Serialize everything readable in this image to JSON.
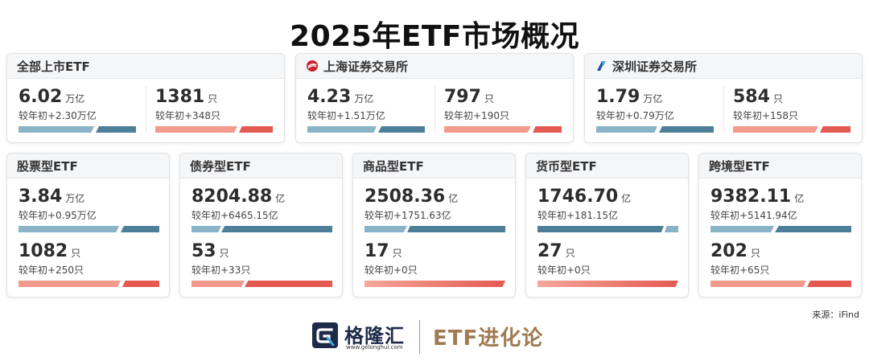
{
  "title": "2025年ETF市场概况",
  "colors": {
    "blue_bar": "#5a8ca8",
    "red_bar": "#e8635a",
    "card_head_bg": "#f5f6f8"
  },
  "top_cards": [
    {
      "name": "全部上市ETF",
      "icon": "",
      "left": {
        "value": "6.02",
        "unit": "万亿",
        "change": "较年初+2.30万亿"
      },
      "right": {
        "value": "1381",
        "unit": "只",
        "change": "较年初+348只"
      }
    },
    {
      "name": "上海证券交易所",
      "icon": "sse-logo-icon",
      "left": {
        "value": "4.23",
        "unit": "万亿",
        "change": "较年初+1.51万亿"
      },
      "right": {
        "value": "797",
        "unit": "只",
        "change": "较年初+190只"
      }
    },
    {
      "name": "深圳证券交易所",
      "icon": "szse-logo-icon",
      "left": {
        "value": "1.79",
        "unit": "万亿",
        "change": "较年初+0.79万亿"
      },
      "right": {
        "value": "584",
        "unit": "只",
        "change": "较年初+158只"
      }
    }
  ],
  "bottom_cards": [
    {
      "name": "股票型ETF",
      "scale": {
        "value": "3.84",
        "unit": "万亿",
        "change": "较年初+0.95万亿"
      },
      "count": {
        "value": "1082",
        "unit": "只",
        "change": "较年初+250只"
      }
    },
    {
      "name": "债券型ETF",
      "scale": {
        "value": "8204.88",
        "unit": "亿",
        "change": "较年初+6465.15亿"
      },
      "count": {
        "value": "53",
        "unit": "只",
        "change": "较年初+33只"
      }
    },
    {
      "name": "商品型ETF",
      "scale": {
        "value": "2508.36",
        "unit": "亿",
        "change": "较年初+1751.63亿"
      },
      "count": {
        "value": "17",
        "unit": "只",
        "change": "较年初+0只"
      }
    },
    {
      "name": "货币型ETF",
      "scale": {
        "value": "1746.70",
        "unit": "亿",
        "change": "较年初+181.15亿"
      },
      "count": {
        "value": "27",
        "unit": "只",
        "change": "较年初+0只"
      }
    },
    {
      "name": "跨境型ETF",
      "scale": {
        "value": "9382.11",
        "unit": "亿",
        "change": "较年初+5141.94亿"
      },
      "count": {
        "value": "202",
        "unit": "只",
        "change": "较年初+65只"
      }
    }
  ],
  "source": "来源：iFind",
  "footer": {
    "brand_name": "格隆汇",
    "brand_url": "www.gelonghui.com",
    "brand_logo_icon": "gelonghui-logo-icon",
    "column_name": "ETF进化论"
  }
}
